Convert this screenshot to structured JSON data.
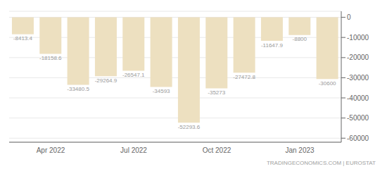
{
  "chart_data": {
    "type": "bar",
    "categories": [
      null,
      "Apr 2022",
      null,
      null,
      "Jul 2022",
      null,
      null,
      "Oct 2022",
      null,
      null,
      "Jan 2023",
      null
    ],
    "values": [
      -8413.4,
      -18158.6,
      -33480.5,
      -29264.9,
      -26547.1,
      -34593,
      -52293.6,
      -35273,
      -27472.8,
      -11647.9,
      -8800,
      -30600
    ],
    "color": "#ede0c0",
    "ylim": [
      -62000,
      3000
    ],
    "yticks": [
      0,
      -10000,
      -20000,
      -30000,
      -40000,
      -50000,
      -60000
    ],
    "grid": true,
    "data_labels": true,
    "annotations": [
      "TRADINGECONOMICS.COM | EUROSTAT"
    ]
  }
}
